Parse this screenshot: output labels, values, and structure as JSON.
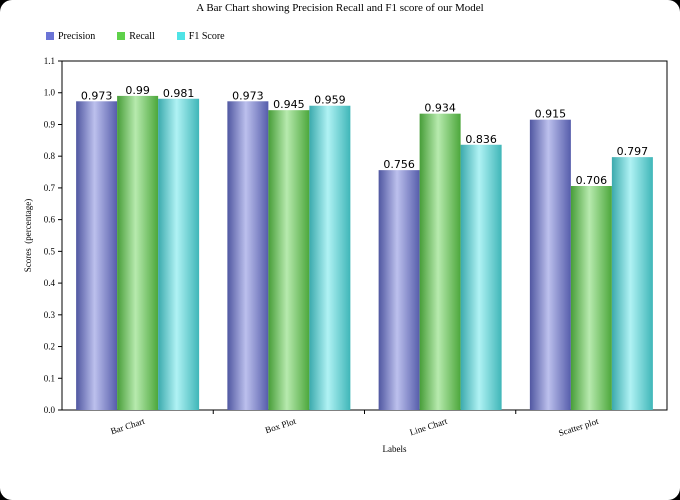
{
  "chart_data": {
    "type": "bar",
    "title": "A Bar Chart showing Precision Recall and F1 score of our Model",
    "xlabel": "Labels",
    "ylabel": "Scores  (percentage)",
    "categories": [
      "Bar Chart",
      "Box Plot",
      "Line Chart",
      "Scatter plot"
    ],
    "series": [
      {
        "name": "Precision",
        "color": "#6b74d6",
        "values": [
          0.973,
          0.973,
          0.756,
          0.915
        ],
        "labels": [
          "0.973",
          "0.973",
          "0.756",
          "0.915"
        ]
      },
      {
        "name": "Recall",
        "color": "#5fd14a",
        "values": [
          0.99,
          0.945,
          0.934,
          0.706
        ],
        "labels": [
          "0.99",
          "0.945",
          "0.934",
          "0.706"
        ]
      },
      {
        "name": "F1 Score",
        "color": "#4fe3e6",
        "values": [
          0.981,
          0.959,
          0.836,
          0.797
        ],
        "labels": [
          "0.981",
          "0.959",
          "0.836",
          "0.797"
        ]
      }
    ],
    "ylim": [
      0,
      1.1
    ],
    "yticks": [
      "0.0",
      "0.1",
      "0.2",
      "0.3",
      "0.4",
      "0.5",
      "0.6",
      "0.7",
      "0.8",
      "0.9",
      "1.0",
      "1.1"
    ],
    "grid": false,
    "legend_position": "top-left"
  }
}
